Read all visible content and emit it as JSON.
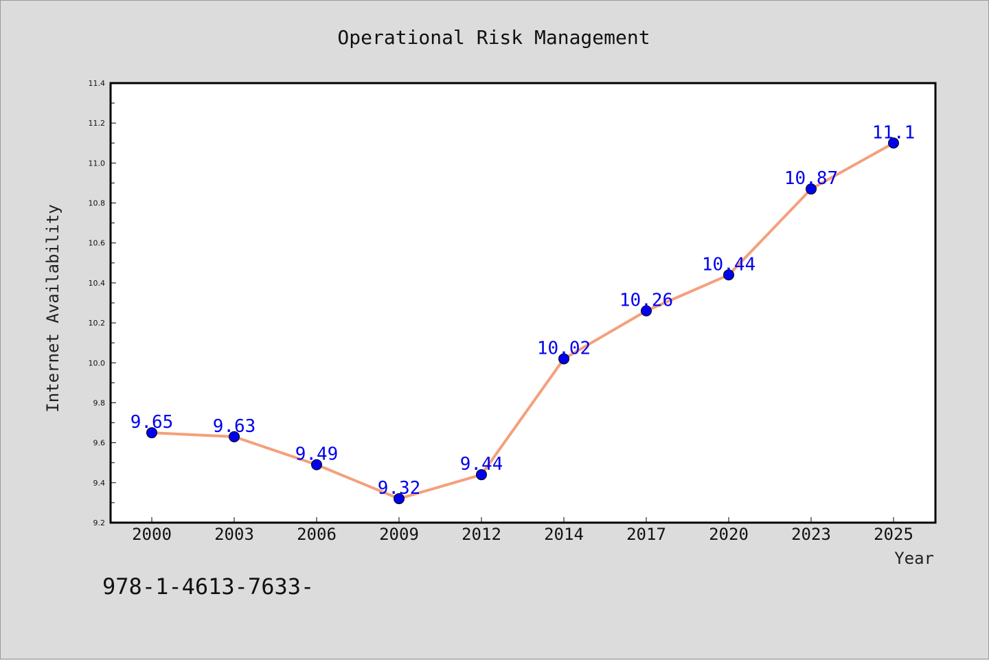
{
  "chart_data": {
    "type": "line",
    "title": "Operational Risk Management",
    "xlabel": "Year",
    "ylabel": "Internet Availability",
    "categories": [
      "2000",
      "2003",
      "2006",
      "2009",
      "2012",
      "2014",
      "2017",
      "2020",
      "2023",
      "2025"
    ],
    "series": [
      {
        "values": [
          9.65,
          9.63,
          9.49,
          9.32,
          9.44,
          10.02,
          10.26,
          10.44,
          10.87,
          11.1
        ],
        "labels": [
          "9.65",
          "9.63",
          "9.49",
          "9.32",
          "9.44",
          "10.02",
          "10.26",
          "10.44",
          "10.87",
          "11.1"
        ],
        "line_color": "#f4a07c",
        "marker_color": "#0000ee"
      }
    ],
    "ylim": [
      9.2,
      11.4
    ],
    "yticks": [
      "9.2",
      "9.4",
      "9.6",
      "9.8",
      "10.0",
      "10.2",
      "10.4",
      "10.6",
      "10.8",
      "11.0",
      "11.2",
      "11.4"
    ],
    "grid": false,
    "background": "#ffffff"
  },
  "footnote": "978-1-4613-7633-"
}
